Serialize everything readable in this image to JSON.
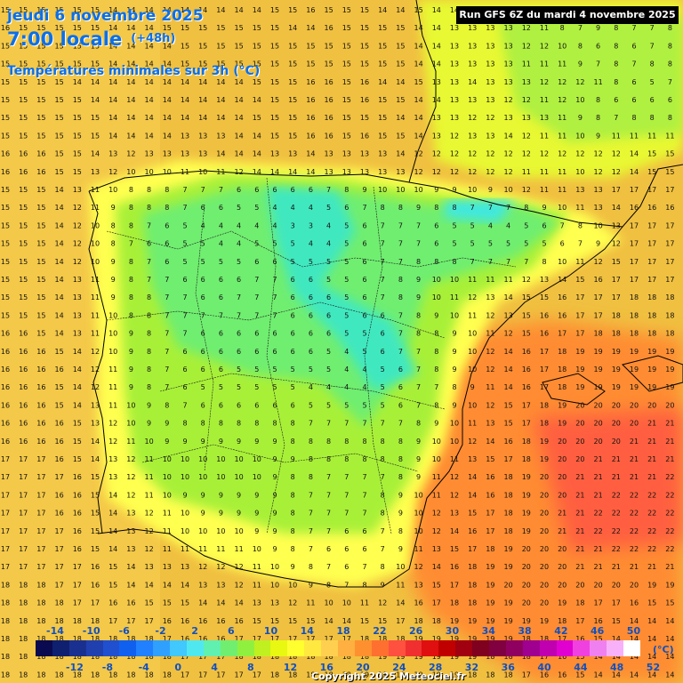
{
  "header": {
    "date_line": "jeudi 6 novembre 2025",
    "time_line": "7:00 locale",
    "offset": "(+48h)",
    "subtitle": "Températures minimales sur 3h (°C)",
    "run_info": "Run GFS 6Z du mardi 4 novembre 2025"
  },
  "legend": {
    "top_labels": [
      "-14",
      "-10",
      "-6",
      "-2",
      "2",
      "6",
      "10",
      "14",
      "18",
      "22",
      "26",
      "30",
      "34",
      "38",
      "42",
      "46",
      "50"
    ],
    "bottom_labels": [
      "-12",
      "-8",
      "-4",
      "0",
      "4",
      "8",
      "12",
      "16",
      "20",
      "24",
      "28",
      "32",
      "36",
      "40",
      "44",
      "48",
      "52"
    ],
    "unit": "(°C)",
    "colors": [
      "#0a0a50",
      "#102070",
      "#1a3090",
      "#2040b0",
      "#2050d0",
      "#1060f0",
      "#2080ff",
      "#30a0ff",
      "#40c8ff",
      "#50e8f0",
      "#60f0b0",
      "#70ee70",
      "#90f040",
      "#c0f020",
      "#e8f810",
      "#ffff30",
      "#ffe840",
      "#ffd050",
      "#ffb040",
      "#ff9030",
      "#ff7030",
      "#ff5040",
      "#f03030",
      "#e01010",
      "#c00000",
      "#a00010",
      "#800020",
      "#800040",
      "#900060",
      "#a00090",
      "#c000b0",
      "#e000d0",
      "#f040e0",
      "#f080f0",
      "#f8b0f8",
      "#ffffff"
    ]
  },
  "colors": {
    "title": "#0b6fe8",
    "sea": "#f0c040",
    "coast_band": "#ffff60",
    "land_cold": "#70ee70",
    "land_cooler": "#40e8d0",
    "warm_sea": "#ff8030"
  },
  "grid": {
    "rows": [
      "15 15 15 15 15 15 14 14 14 14 14 14 14 14 14 15 15 16 15 15 15 14 14 15 14 14 13 13 14 13 13 13 13 13 13 14 13 13",
      "16 15 15 15 15 15 14 14 14 15 15 15 15 15 15 15 14 14 16 15 15 15 15 14 14 13 13 13 13 12 11 8 7 9 8 7 7 8",
      "15 15 15 15 15 15 14 14 14 14 15 15 15 15 15 15 15 15 15 15 15 15 15 14 14 13 13 13 13 12 12 10 8 6 8 6 7 8",
      "15 15 15 15 15 15 14 14 14 14 15 15 15 15 15 15 15 15 15 15 15 15 15 14 14 13 13 13 13 11 11 11 9 7 8 7 8 8",
      "15 15 15 15 14 14 14 14 14 14 14 14 14 14 15 15 15 16 16 15 16 14 14 15 13 13 14 13 13 13 12 12 12 11 8 6 5 7",
      "15 15 15 15 15 14 14 14 14 14 14 14 14 14 14 15 15 16 16 15 16 15 15 14 14 13 13 13 12 12 11 12 10 8 6 6 6 6",
      "15 15 15 15 15 15 14 14 14 14 14 14 14 14 15 15 15 16 16 15 15 15 14 14 13 13 12 12 13 13 13 11 9 8 7 8 8 8",
      "15 15 15 15 15 15 14 14 14 14 13 13 13 14 14 15 15 16 16 15 16 15 15 14 13 12 13 13 14 12 11 11 10 9 11 11 11 11",
      "16 16 16 15 15 14 13 12 13 13 13 13 14 14 14 13 13 14 13 13 13 13 14 12 12 12 12 12 12 12 12 12 12 12 12 14 15 15",
      "16 16 16 15 15 13 12 10 10 10 11 10 11 12 14 14 14 14 13 13 13 13 13 12 12 12 12 12 12 11 11 11 10 12 12 14 15 15",
      "15 15 15 14 13 11 10 8 8 8 7 7 7 6 6 6 6 6 7 8 9 10 10 10 9 9 10 9 10 12 11 11 13 13 17 17 17 17",
      "15 15 15 14 12 11 9 8 8 8 7 6 6 5 5 4 4 4 5 6 7 8 8 9 8 8 7 7 7 8 9 10 11 13 14 16 16 16",
      "15 15 15 14 12 10 8 8 7 6 5 4 4 4 4 4 3 3 4 5 6 7 7 7 6 5 5 4 4 5 6 7 8 10 13 17 17 17",
      "15 15 15 14 12 10 8 7 6 6 5 5 4 4 5 5 5 4 4 5 6 7 7 7 6 5 5 5 5 5 5 6 7 9 12 17 17 17",
      "15 15 15 14 12 10 9 8 7 6 5 5 5 5 6 6 5 5 5 5 6 7 7 8 8 8 7 7 7 7 8 10 11 12 15 17 17 17",
      "15 15 15 14 13 11 9 8 7 7 6 6 6 6 7 7 6 6 5 5 6 7 8 9 10 10 11 11 11 12 13 14 15 16 17 17 17 17",
      "15 15 15 14 13 11 9 8 8 7 7 6 6 7 7 7 6 6 6 5 6 7 8 9 10 11 12 13 14 15 15 16 17 17 17 18 18 18",
      "15 15 15 14 13 11 10 8 8 7 7 7 7 7 7 7 6 6 6 5 6 6 7 8 9 10 11 12 13 15 16 16 17 17 18 18 18 18",
      "16 16 15 14 13 11 10 9 8 7 7 6 6 6 6 6 6 6 6 5 5 6 7 8 8 9 10 11 12 15 16 17 17 18 18 18 18 18",
      "16 16 16 15 14 12 10 9 8 7 6 6 6 6 6 6 6 6 5 4 5 6 7 7 8 9 10 12 14 16 17 18 19 19 19 19 19 19",
      "16 16 16 16 14 12 11 9 8 7 6 6 6 5 5 5 5 5 5 4 4 5 6 7 8 9 10 12 14 16 17 18 19 19 19 19 19 19",
      "16 16 16 15 14 12 11 9 8 7 6 5 5 5 5 5 5 4 4 4 4 5 6 7 7 8 9 11 14 16 17 18 19 19 19 19 19 19",
      "16 16 16 15 14 13 11 10 9 8 7 6 6 6 6 6 6 5 5 5 5 5 6 7 8 9 10 12 15 17 18 19 20 20 20 20 20 20",
      "16 16 16 16 15 13 12 10 9 9 8 8 8 8 8 8 8 7 7 7 7 7 7 8 9 10 11 13 15 17 18 19 20 20 20 20 21 21",
      "16 16 16 16 15 14 12 11 10 9 9 9 9 9 9 9 8 8 8 8 8 8 8 9 10 10 12 14 16 18 19 20 20 20 20 21 21 21",
      "17 17 17 16 15 14 13 12 11 10 10 10 10 10 10 9 9 8 8 8 8 8 8 9 10 11 13 15 17 18 19 20 20 21 21 21 21 21",
      "17 17 17 17 16 15 13 12 11 10 10 10 10 10 10 9 8 8 7 7 7 7 8 9 11 12 14 16 18 19 20 20 21 21 21 21 21 22",
      "17 17 17 16 16 15 14 12 11 10 9 9 9 9 9 9 8 7 7 7 7 8 9 10 11 12 14 16 18 19 20 20 21 21 22 22 22 22",
      "17 17 17 16 16 15 14 13 12 11 10 9 9 9 9 9 8 7 7 7 7 8 9 10 12 13 15 17 18 19 20 21 21 22 22 22 22 22",
      "17 17 17 17 16 15 14 13 12 11 10 10 10 10 9 9 8 7 7 6 6 7 8 10 12 14 16 17 18 19 20 21 21 22 22 22 22 22",
      "17 17 17 17 16 15 14 13 12 11 11 11 11 11 10 9 8 7 6 6 6 7 9 11 13 15 17 18 19 20 20 20 21 21 22 22 22 22",
      "17 17 17 17 17 16 15 14 13 13 13 12 12 12 11 10 9 8 7 6 7 8 10 12 14 16 18 19 19 20 20 20 21 21 21 21 21 21",
      "18 18 18 17 17 16 15 14 14 14 14 13 13 12 11 10 10 9 8 7 8 9 11 13 15 17 18 19 20 20 20 20 20 20 20 20 19 19",
      "18 18 18 18 17 17 16 16 15 15 15 14 14 14 13 13 12 11 10 10 11 12 14 16 17 18 18 19 19 20 20 19 18 17 17 16 15 15",
      "18 18 18 18 18 18 17 17 17 16 16 16 16 16 15 15 15 15 14 14 15 15 17 18 18 19 19 19 19 19 19 18 17 16 15 14 14 14",
      "18 18 18 18 18 18 18 18 18 17 16 16 16 17 17 17 17 17 17 17 18 18 18 19 19 19 19 19 19 18 18 17 16 15 14 14 14 14",
      "18 18 18 18 18 18 18 18 18 18 17 17 17 18 18 18 18 18 18 18 18 19 19 19 19 19 19 18 18 18 17 16 15 14 14 14 14 14",
      "18 18 18 18 18 18 18 18 18 18 17 17 17 17 17 18 18 18 18 18 19 19 19 19 19 19 18 18 18 17 16 16 15 14 14 14 14 14",
      "19 19 19 19 19 19 19 18 18 18 18 18 18 18 18 18 18 18 18 19 19 19 19 19 19 19 18 18 18 17 17 16 15 15 14 14 14 14"
    ]
  },
  "copyright": "Copyright 2025 Meteociel.fr"
}
